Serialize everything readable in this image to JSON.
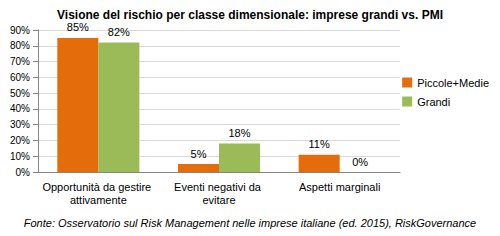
{
  "chart_data": {
    "type": "bar",
    "title": "Visione del rischio per classe dimensionale: imprese grandi vs. PMI",
    "caption": "Fonte: Osservatorio sul Risk Management nelle imprese italiane (ed. 2015), RiskGovernance",
    "categories": [
      "Opportunità da gestire attivamente",
      "Eventi negativi da evitare",
      "Aspetti marginali"
    ],
    "series": [
      {
        "name": "Piccole+Medie",
        "color": "#e46c0a",
        "values": [
          85,
          5,
          11
        ],
        "value_labels": [
          "85%",
          "5%",
          "11%"
        ]
      },
      {
        "name": "Grandi",
        "color": "#9bbb59",
        "values": [
          82,
          18,
          0
        ],
        "value_labels": [
          "82%",
          "18%",
          "0%"
        ]
      }
    ],
    "ylim": [
      0,
      90
    ],
    "yticks": [
      {
        "value": 0,
        "label": "0%"
      },
      {
        "value": 10,
        "label": "10%"
      },
      {
        "value": 20,
        "label": "20%"
      },
      {
        "value": 30,
        "label": "30%"
      },
      {
        "value": 40,
        "label": "40%"
      },
      {
        "value": 50,
        "label": "50%"
      },
      {
        "value": 60,
        "label": "60%"
      },
      {
        "value": 70,
        "label": "70%"
      },
      {
        "value": 80,
        "label": "80%"
      },
      {
        "value": 90,
        "label": "90%"
      }
    ],
    "grid": true,
    "legend": "right",
    "data_labels": true
  }
}
